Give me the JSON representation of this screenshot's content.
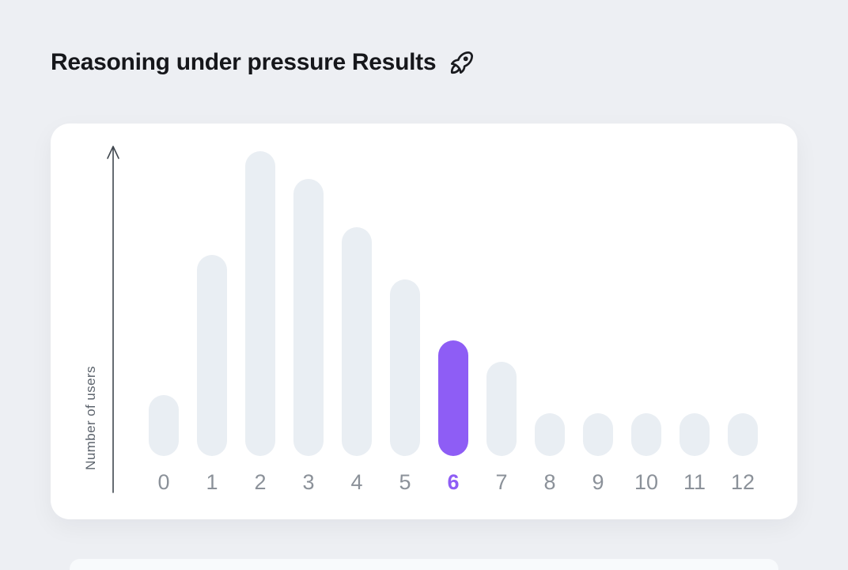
{
  "page": {
    "title": "Reasoning under pressure Results",
    "title_icon": "rocket-icon",
    "background_color": "#edeff3"
  },
  "chart_data": {
    "type": "bar",
    "title": "Reasoning under pressure Results",
    "xlabel": "",
    "ylabel": "Number of users",
    "categories": [
      "0",
      "1",
      "2",
      "3",
      "4",
      "5",
      "6",
      "7",
      "8",
      "9",
      "10",
      "11",
      "12"
    ],
    "values": [
      20,
      66,
      100,
      91,
      75,
      58,
      38,
      31,
      14,
      14,
      14,
      14,
      14
    ],
    "values_note": "y-axis has no numeric tick labels; values are relative bar heights with tallest bar = 100",
    "ylim": [
      0,
      100
    ],
    "grid": false,
    "legend": null,
    "highlight_index": 6,
    "highlighted_category": "6",
    "colors": {
      "bar": "#e9eef3",
      "highlight": "#8e5df5",
      "axis": "#40474f",
      "tick_label": "#8b9199",
      "tick_label_highlight": "#8e5df5",
      "card_background": "#ffffff"
    }
  }
}
